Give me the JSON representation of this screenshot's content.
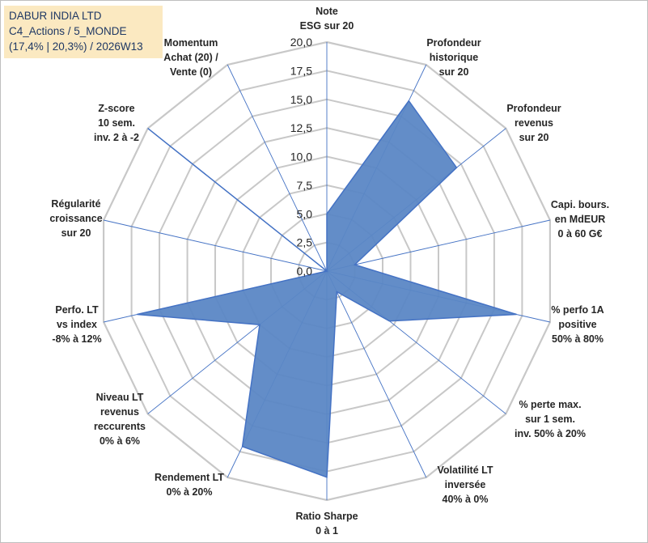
{
  "title_box": {
    "line1": "DABUR INDIA LTD",
    "line2": "C4_Actions / 5_MONDE",
    "line3": "(17,4% | 20,3%) / 2026W13"
  },
  "colors": {
    "ring": "#c8c8c8",
    "spoke": "#4472c4",
    "fill": "#5b87c5",
    "stroke": "#4472c4",
    "label": "#262626",
    "title_bg": "#fbe9c1",
    "title_text": "#1f3864"
  },
  "chart_data": {
    "type": "radar",
    "title": "DABUR INDIA LTD",
    "r_range": [
      0,
      20
    ],
    "r_ticks": [
      "0,0",
      "2,5",
      "5,0",
      "7,5",
      "10,0",
      "12,5",
      "15,0",
      "17,5",
      "20,0"
    ],
    "grid": true,
    "axes": [
      {
        "label": [
          "Note",
          "ESG sur 20"
        ],
        "value": 5.0
      },
      {
        "label": [
          "Profondeur",
          "historique",
          "sur 20"
        ],
        "value": 16.5
      },
      {
        "label": [
          "Profondeur",
          "revenus",
          "sur 20"
        ],
        "value": 14.5
      },
      {
        "label": [
          "Capi. bours.",
          "en MdEUR",
          "0 à 60 G€"
        ],
        "value": 2.5
      },
      {
        "label": [
          "% perfo 1A",
          "positive",
          "50% à 80%"
        ],
        "value": 17.0
      },
      {
        "label": [
          "% perte max.",
          "sur 1 sem.",
          "inv. 50% à 20%"
        ],
        "value": 7.0
      },
      {
        "label": [
          "Volatilité LT",
          "inversée",
          "40% à 0%"
        ],
        "value": 2.0
      },
      {
        "label": [
          "Ratio Sharpe",
          "0 à 1"
        ],
        "value": 18.0
      },
      {
        "label": [
          "Rendement LT",
          "0% à 20%"
        ],
        "value": 17.0
      },
      {
        "label": [
          "Niveau LT",
          "revenus",
          "reccurents",
          "0% à 6%"
        ],
        "value": 7.5
      },
      {
        "label": [
          "Perfo. LT",
          "vs index",
          "-8% à 12%"
        ],
        "value": 17.0
      },
      {
        "label": [
          "Régularité",
          "croissance",
          "sur 20"
        ],
        "value": 0.0
      },
      {
        "label": [
          "Z-score",
          "10 sem.",
          "inv. 2 à -2"
        ],
        "value": 20.0
      },
      {
        "label": [
          "Momentum",
          "Achat (20) /",
          "Vente (0)"
        ],
        "value": 0.0
      }
    ]
  }
}
